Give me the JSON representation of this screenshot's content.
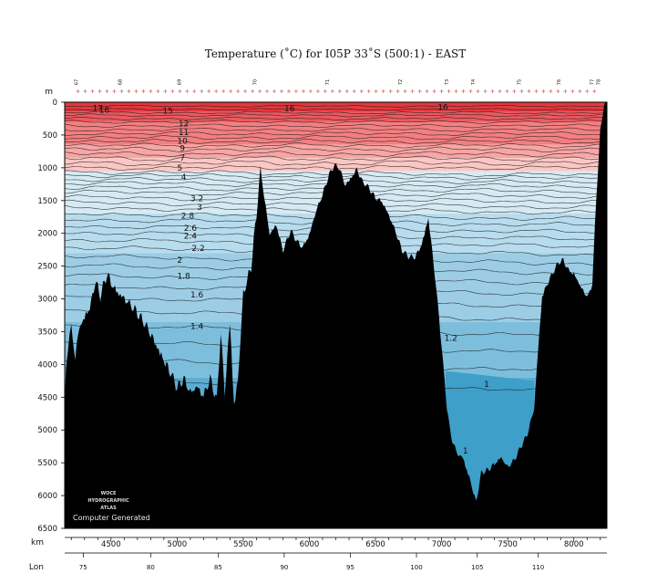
{
  "chart_data": {
    "type": "heatmap",
    "title": "Temperature (˚C) for I05P 33˚S (500:1) - EAST",
    "ylabel": "m",
    "xlabel": "km",
    "x2label": "Lon",
    "xlim": [
      4150,
      8250
    ],
    "ylim": [
      0,
      6500
    ],
    "y_ticks": [
      0,
      500,
      1000,
      1500,
      2000,
      2500,
      3000,
      3500,
      4000,
      4500,
      5000,
      5500,
      6000,
      6500
    ],
    "x_ticks": [
      4500,
      5000,
      5500,
      6000,
      6500,
      7000,
      7500,
      8000
    ],
    "lon_ticks": [
      {
        "km": 4290,
        "label": "75"
      },
      {
        "km": 4800,
        "label": "80"
      },
      {
        "km": 5310,
        "label": "85"
      },
      {
        "km": 5810,
        "label": "90"
      },
      {
        "km": 6310,
        "label": "95"
      },
      {
        "km": 6810,
        "label": "100"
      },
      {
        "km": 7270,
        "label": "105"
      },
      {
        "km": 7730,
        "label": "110"
      }
    ],
    "stations": [
      {
        "km": 4250,
        "label": "67"
      },
      {
        "km": 4580,
        "label": "68"
      },
      {
        "km": 5030,
        "label": "69"
      },
      {
        "km": 5600,
        "label": "70"
      },
      {
        "km": 6150,
        "label": "71"
      },
      {
        "km": 6700,
        "label": "72"
      },
      {
        "km": 7050,
        "label": "73"
      },
      {
        "km": 7250,
        "label": "74"
      },
      {
        "km": 7600,
        "label": "75"
      },
      {
        "km": 7900,
        "label": "76"
      },
      {
        "km": 8150,
        "label": "77"
      },
      {
        "km": 8200,
        "label": "78"
      }
    ],
    "contour_levels": [
      17,
      16,
      15,
      14,
      13,
      12,
      11,
      10,
      9,
      8,
      7,
      6,
      5,
      4,
      3.6,
      3.4,
      3.2,
      3,
      2.8,
      2.6,
      2.5,
      2.4,
      2.3,
      2.2,
      2.1,
      2,
      1.9,
      1.8,
      1.7,
      1.6,
      1.5,
      1.4,
      1.3,
      1.2,
      1.1,
      1
    ],
    "contour_labels": [
      {
        "text": "17",
        "km": 4400,
        "depth": 90
      },
      {
        "text": "16",
        "km": 4450,
        "depth": 120
      },
      {
        "text": "15",
        "km": 4930,
        "depth": 135
      },
      {
        "text": "16",
        "km": 5850,
        "depth": 100
      },
      {
        "text": "16",
        "km": 7010,
        "depth": 80
      },
      {
        "text": "12",
        "km": 5050,
        "depth": 330
      },
      {
        "text": "11",
        "km": 5050,
        "depth": 460
      },
      {
        "text": "10",
        "km": 5040,
        "depth": 590
      },
      {
        "text": "9",
        "km": 5040,
        "depth": 700
      },
      {
        "text": "7",
        "km": 5040,
        "depth": 850
      },
      {
        "text": "5",
        "km": 5020,
        "depth": 1000
      },
      {
        "text": "4",
        "km": 5050,
        "depth": 1140
      },
      {
        "text": "3.2",
        "km": 5150,
        "depth": 1470
      },
      {
        "text": "3",
        "km": 5170,
        "depth": 1600
      },
      {
        "text": "2.8",
        "km": 5080,
        "depth": 1730
      },
      {
        "text": "2.6",
        "km": 5100,
        "depth": 1920
      },
      {
        "text": "2.4",
        "km": 5100,
        "depth": 2040
      },
      {
        "text": "2.2",
        "km": 5160,
        "depth": 2230
      },
      {
        "text": "2",
        "km": 5020,
        "depth": 2410
      },
      {
        "text": "1.8",
        "km": 5050,
        "depth": 2650
      },
      {
        "text": "1.6",
        "km": 5150,
        "depth": 2940
      },
      {
        "text": "1.4",
        "km": 5150,
        "depth": 3420
      },
      {
        "text": "1.2",
        "km": 7070,
        "depth": 3600
      },
      {
        "text": "1",
        "km": 7340,
        "depth": 4300
      },
      {
        "text": "1",
        "km": 7180,
        "depth": 5320
      }
    ],
    "bottom_depth": [
      [
        4150,
        4700
      ],
      [
        4160,
        4200
      ],
      [
        4175,
        3800
      ],
      [
        4200,
        3550
      ],
      [
        4230,
        3950
      ],
      [
        4260,
        3500
      ],
      [
        4300,
        3350
      ],
      [
        4350,
        3150
      ],
      [
        4380,
        2800
      ],
      [
        4420,
        3050
      ],
      [
        4470,
        2700
      ],
      [
        4520,
        2900
      ],
      [
        4570,
        3000
      ],
      [
        4620,
        3100
      ],
      [
        4680,
        3250
      ],
      [
        4750,
        3450
      ],
      [
        4800,
        3600
      ],
      [
        4850,
        3800
      ],
      [
        4900,
        4000
      ],
      [
        4950,
        4200
      ],
      [
        5000,
        4450
      ],
      [
        5050,
        4300
      ],
      [
        5100,
        4500
      ],
      [
        5150,
        4400
      ],
      [
        5200,
        4550
      ],
      [
        5250,
        4300
      ],
      [
        5300,
        4650
      ],
      [
        5330,
        3600
      ],
      [
        5360,
        4500
      ],
      [
        5400,
        3400
      ],
      [
        5430,
        4700
      ],
      [
        5460,
        4300
      ],
      [
        5500,
        3000
      ],
      [
        5560,
        2600
      ],
      [
        5600,
        1800
      ],
      [
        5630,
        1050
      ],
      [
        5660,
        1500
      ],
      [
        5700,
        2050
      ],
      [
        5750,
        1900
      ],
      [
        5800,
        2300
      ],
      [
        5860,
        2000
      ],
      [
        5900,
        2150
      ],
      [
        5950,
        2250
      ],
      [
        6000,
        2050
      ],
      [
        6050,
        1700
      ],
      [
        6100,
        1450
      ],
      [
        6150,
        1150
      ],
      [
        6190,
        1000
      ],
      [
        6230,
        1050
      ],
      [
        6270,
        1300
      ],
      [
        6310,
        1200
      ],
      [
        6360,
        1050
      ],
      [
        6400,
        1250
      ],
      [
        6450,
        1350
      ],
      [
        6500,
        1500
      ],
      [
        6550,
        1550
      ],
      [
        6600,
        1750
      ],
      [
        6650,
        2000
      ],
      [
        6700,
        2300
      ],
      [
        6750,
        2400
      ],
      [
        6800,
        2400
      ],
      [
        6850,
        2200
      ],
      [
        6900,
        1800
      ],
      [
        6940,
        2500
      ],
      [
        6980,
        3300
      ],
      [
        7010,
        4000
      ],
      [
        7040,
        4700
      ],
      [
        7060,
        5000
      ],
      [
        7080,
        5200
      ],
      [
        7120,
        5400
      ],
      [
        7160,
        5450
      ],
      [
        7200,
        5700
      ],
      [
        7230,
        5900
      ],
      [
        7260,
        6150
      ],
      [
        7300,
        5700
      ],
      [
        7350,
        5650
      ],
      [
        7400,
        5550
      ],
      [
        7450,
        5450
      ],
      [
        7500,
        5600
      ],
      [
        7550,
        5500
      ],
      [
        7600,
        5300
      ],
      [
        7650,
        5100
      ],
      [
        7700,
        4700
      ],
      [
        7730,
        3800
      ],
      [
        7760,
        3000
      ],
      [
        7800,
        2800
      ],
      [
        7840,
        2650
      ],
      [
        7880,
        2500
      ],
      [
        7920,
        2450
      ],
      [
        7960,
        2600
      ],
      [
        8000,
        2650
      ],
      [
        8040,
        2800
      ],
      [
        8080,
        2950
      ],
      [
        8110,
        3000
      ],
      [
        8140,
        2800
      ],
      [
        8170,
        1500
      ],
      [
        8200,
        500
      ],
      [
        8230,
        50
      ],
      [
        8250,
        0
      ]
    ],
    "colors": {
      "warm_deep": "#e4393f",
      "warm_1": "#ec5a60",
      "warm_2": "#f37f81",
      "warm_3": "#f7a6a5",
      "warm_4": "#fbc7c4",
      "cold_1": "#d6eaf4",
      "cold_2": "#b7dcee",
      "cold_3": "#9ccde5",
      "cold_4": "#7dbedc",
      "cold_5": "#5dadd3",
      "cold_6": "#3e9fc9",
      "bottom": "#000000"
    }
  },
  "watermark": {
    "line1": "WOCE",
    "line2": "HYDROGRAPHIC",
    "line3": "ATLAS",
    "computer_generated": "Computer Generated"
  }
}
